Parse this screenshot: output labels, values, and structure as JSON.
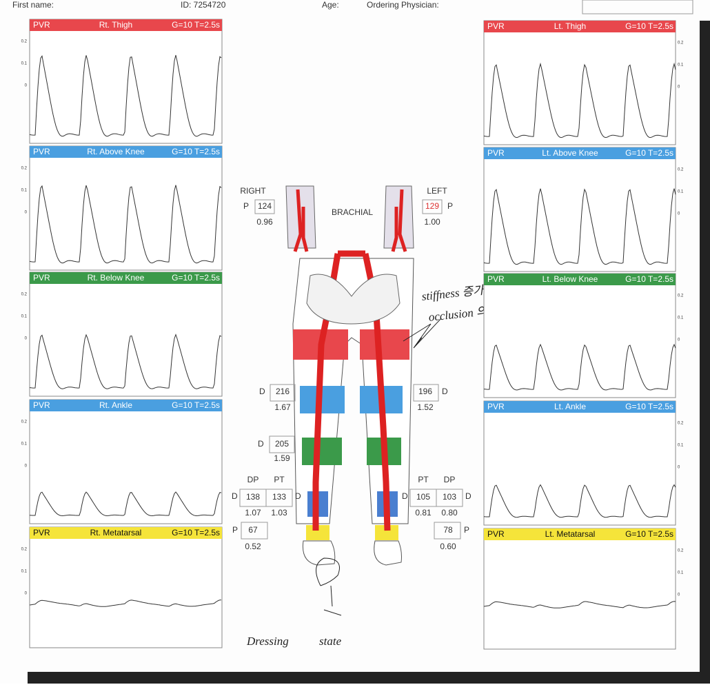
{
  "header": {
    "first_name": "First name:",
    "id": "ID: 7254720",
    "age": "Age:",
    "physician": "Ordering Physician:"
  },
  "axis_labels": [
    "0.2",
    "0.1",
    "0"
  ],
  "panels": [
    {
      "label": "PVR",
      "site": "Rt. Thigh",
      "settings": "G=10 T=2.5s",
      "color": "#e8474c"
    },
    {
      "label": "PVR",
      "site": "Rt. Above Knee",
      "settings": "G=10 T=2.5s",
      "color": "#4a9fe0"
    },
    {
      "label": "PVR",
      "site": "Rt. Below Knee",
      "settings": "G=10 T=2.5s",
      "color": "#3b9a4a"
    },
    {
      "label": "PVR",
      "site": "Rt. Ankle",
      "settings": "G=10 T=2.5s",
      "color": "#4a9fe0"
    },
    {
      "label": "PVR",
      "site": "Rt. Metatarsal",
      "settings": "G=10 T=2.5s",
      "color": "#f5e43a"
    },
    {
      "label": "PVR",
      "site": "Lt. Thigh",
      "settings": "G=10 T=2.5s",
      "color": "#e8474c"
    },
    {
      "label": "PVR",
      "site": "Lt. Above Knee",
      "settings": "G=10 T=2.5s",
      "color": "#4a9fe0"
    },
    {
      "label": "PVR",
      "site": "Lt. Below Knee",
      "settings": "G=10 T=2.5s",
      "color": "#3b9a4a"
    },
    {
      "label": "PVR",
      "site": "Lt. Ankle",
      "settings": "G=10 T=2.5s",
      "color": "#4a9fe0"
    },
    {
      "label": "PVR",
      "site": "Lt. Metatarsal",
      "settings": "G=10 T=2.5s",
      "color": "#f5e43a"
    }
  ],
  "brachial": {
    "label": "BRACHIAL",
    "right": {
      "side": "RIGHT",
      "code": "P",
      "pressure": "124",
      "index": "0.96"
    },
    "left": {
      "side": "LEFT",
      "code": "P",
      "pressure": "129",
      "index": "1.00"
    }
  },
  "thigh": {
    "right": {
      "code": "D",
      "pressure": "216",
      "index": "1.67"
    },
    "left": {
      "code": "D",
      "pressure": "196",
      "index": "1.52"
    }
  },
  "calf": {
    "right": {
      "code": "D",
      "pressure": "205",
      "index": "1.59"
    }
  },
  "ankle": {
    "right": {
      "code": "D",
      "dp": {
        "label": "DP",
        "pressure": "138",
        "index": "1.07"
      },
      "pt": {
        "label": "PT",
        "pressure": "133",
        "index": "1.03"
      },
      "code2": "D"
    },
    "left": {
      "code": "D",
      "pt": {
        "label": "PT",
        "pressure": "105",
        "index": "0.81"
      },
      "dp": {
        "label": "DP",
        "pressure": "103",
        "index": "0.80"
      },
      "code2": "D"
    }
  },
  "metatarsal": {
    "right": {
      "code": "P",
      "pressure": "67",
      "index": "0.52"
    },
    "left": {
      "code": "P",
      "pressure": "78",
      "index": "0.60"
    }
  },
  "annotations": {
    "stiffness": "stiffness 증가",
    "occlusion": "occlusion 의심",
    "dressing": "Dressing state"
  }
}
